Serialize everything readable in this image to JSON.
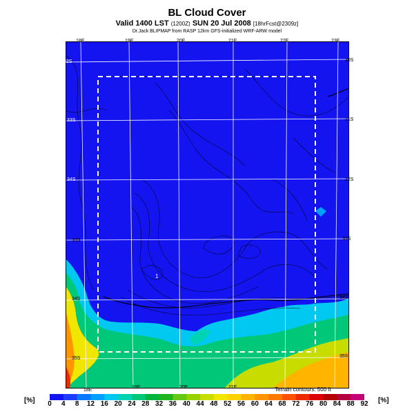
{
  "header": {
    "title": "BL Cloud Cover",
    "subtitle_main": "Valid 1400 LST",
    "subtitle_run": "(1200Z)",
    "subtitle_date": "SUN 20 Jul 2008",
    "subtitle_fcst": "[18hrFcst@2309z]",
    "credit": "Dr.Jack BLIPMAP from RASP 12km GFS-initialized WRF-ARW model"
  },
  "map": {
    "top_lon_labels": [
      "18E",
      "19E",
      "20E",
      "21E",
      "22E",
      "23E"
    ],
    "bottom_lon_labels": [
      "18E",
      "19E",
      "20E",
      "21E"
    ],
    "left_lat_labels": [
      "32S",
      "33S",
      "34S",
      "35S",
      "34S",
      "35S"
    ],
    "right_lat_labels": [
      "30S",
      "31S",
      "32S",
      "33S",
      "34S",
      "35S"
    ],
    "terrain_note": "Terrain contours: 500 ft",
    "point_label": "1"
  },
  "legend": {
    "unit_left": "[%]",
    "unit_right": "[%]",
    "values": [
      "0",
      "4",
      "8",
      "12",
      "16",
      "20",
      "24",
      "28",
      "32",
      "36",
      "40",
      "44",
      "48",
      "52",
      "56",
      "60",
      "64",
      "68",
      "72",
      "76",
      "80",
      "84",
      "88",
      "92"
    ],
    "colors": [
      "#1414f0",
      "#1e3cff",
      "#0a78ff",
      "#00a0ff",
      "#00c8f0",
      "#00d2b4",
      "#00c878",
      "#00b43c",
      "#1eb41e",
      "#64c814",
      "#96d200",
      "#c8dc00",
      "#f0e600",
      "#ffd200",
      "#ffb400",
      "#ff9600",
      "#ff7800",
      "#ff5000",
      "#f02800",
      "#dc0000",
      "#b40000",
      "#b4003c",
      "#c80078"
    ]
  }
}
